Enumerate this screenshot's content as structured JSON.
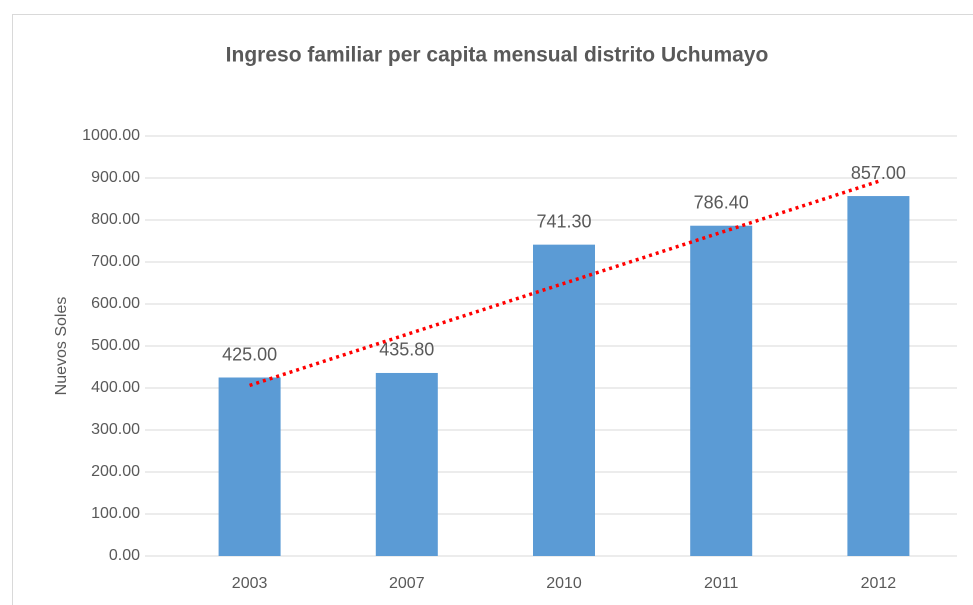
{
  "chart_data": {
    "type": "bar",
    "title": "Ingreso familiar per capita mensual  distrito Uchumayo",
    "y_label": "Nuevos Soles",
    "categories": [
      "2003",
      "2007",
      "2010",
      "2011",
      "2012"
    ],
    "values": [
      425,
      435.8,
      741.3,
      786.4,
      857
    ],
    "value_labels": [
      "425.00",
      "435.80",
      "741.30",
      "786.40",
      "857.00"
    ],
    "color": "#5b9bd5",
    "ylim": [
      0,
      1000
    ],
    "yticks": [
      {
        "value": 0,
        "label": "0.00"
      },
      {
        "value": 100,
        "label": "100.00"
      },
      {
        "value": 200,
        "label": "200.00"
      },
      {
        "value": 300,
        "label": "300.00"
      },
      {
        "value": 400,
        "label": "400.00"
      },
      {
        "value": 500,
        "label": "500.00"
      },
      {
        "value": 600,
        "label": "600.00"
      },
      {
        "value": 700,
        "label": "700.00"
      },
      {
        "value": 800,
        "label": "800.00"
      },
      {
        "value": 900,
        "label": "900.00"
      },
      {
        "value": 1000,
        "label": "1000.00"
      }
    ],
    "grid": true,
    "trendline": {
      "type": "linear",
      "color": "#ff0000"
    }
  }
}
